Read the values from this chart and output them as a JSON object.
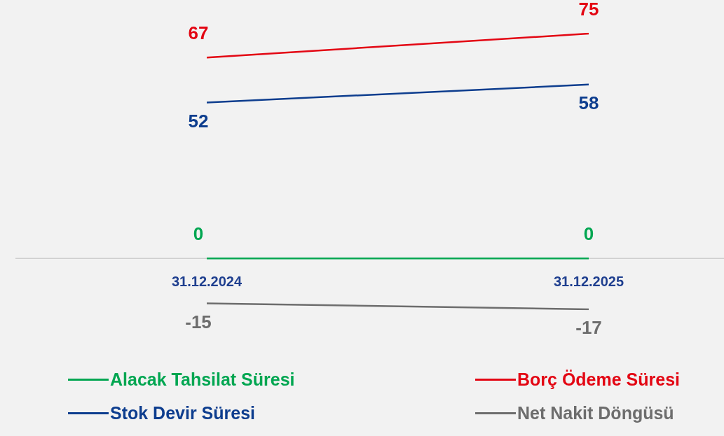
{
  "chart_data": {
    "type": "line",
    "categories": [
      "31.12.2024",
      "31.12.2025"
    ],
    "series": [
      {
        "name": "Alacak Tahsilat Süresi",
        "color": "#00a651",
        "values": [
          0,
          0
        ]
      },
      {
        "name": "Borç Ödeme Süresi",
        "color": "#e30613",
        "values": [
          67,
          75
        ]
      },
      {
        "name": "Stok Devir Süresi",
        "color": "#0d3d8e",
        "values": [
          52,
          58
        ]
      },
      {
        "name": "Net Nakit Döngüsü",
        "color": "#6d6d6d",
        "values": [
          -15,
          -17
        ]
      }
    ],
    "tick_labels": "x",
    "grid": false,
    "legend": "bottom",
    "marker": "none",
    "line_style": "solid",
    "data_labels": true
  }
}
